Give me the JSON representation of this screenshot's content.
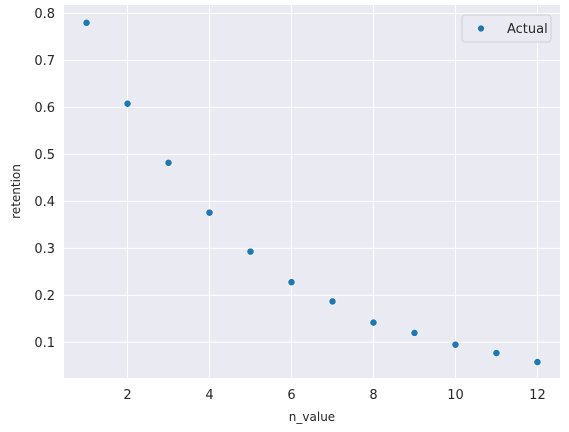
{
  "chart_data": {
    "type": "scatter",
    "title": "",
    "xlabel": "n_value",
    "ylabel": "retention",
    "xlim": [
      0.45,
      12.55
    ],
    "ylim": [
      0.024,
      0.818
    ],
    "xticks": [
      2,
      4,
      6,
      8,
      10,
      12
    ],
    "yticks": [
      0.1,
      0.2,
      0.3,
      0.4,
      0.5,
      0.6,
      0.7,
      0.8
    ],
    "grid": true,
    "legend_position": "top-right",
    "series": [
      {
        "name": "Actual",
        "color": "#1f77b4",
        "x": [
          1,
          2,
          3,
          4,
          5,
          6,
          7,
          8,
          9,
          10,
          11,
          12
        ],
        "y": [
          0.78,
          0.608,
          0.482,
          0.376,
          0.293,
          0.228,
          0.187,
          0.142,
          0.12,
          0.095,
          0.077,
          0.058
        ]
      }
    ]
  },
  "style": {
    "plot_background": "#eaeaf2",
    "grid_color": "#ffffff",
    "text_color": "#262626"
  }
}
